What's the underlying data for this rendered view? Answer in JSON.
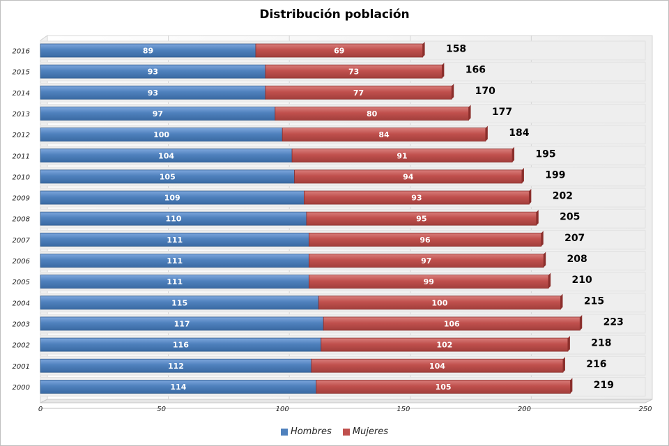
{
  "chart_data": {
    "type": "bar",
    "orientation": "horizontal",
    "stacked": true,
    "title": "Distribución población",
    "categories": [
      "2016",
      "2015",
      "2014",
      "2013",
      "2012",
      "2011",
      "2010",
      "2009",
      "2008",
      "2007",
      "2006",
      "2005",
      "2004",
      "2003",
      "2002",
      "2001",
      "2000"
    ],
    "series": [
      {
        "name": "Hombres",
        "color": "#4f81bd",
        "values": [
          89,
          93,
          93,
          97,
          100,
          104,
          105,
          109,
          110,
          111,
          111,
          111,
          115,
          117,
          116,
          112,
          114
        ]
      },
      {
        "name": "Mujeres",
        "color": "#c0504d",
        "values": [
          69,
          73,
          77,
          80,
          84,
          91,
          94,
          93,
          95,
          96,
          97,
          99,
          100,
          106,
          102,
          104,
          105
        ]
      }
    ],
    "totals": [
      158,
      166,
      170,
      177,
      184,
      195,
      199,
      202,
      205,
      207,
      208,
      210,
      215,
      223,
      218,
      216,
      219
    ],
    "xlim": [
      0,
      250
    ],
    "xticks": [
      0,
      50,
      100,
      150,
      200,
      250
    ],
    "legend_position": "bottom",
    "grid": true
  }
}
